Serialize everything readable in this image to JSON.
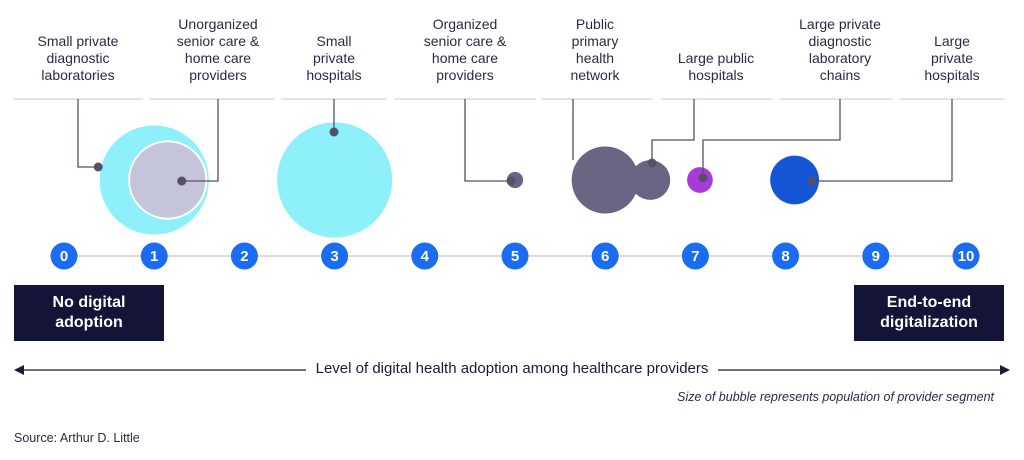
{
  "chart_data": {
    "type": "scatter",
    "title": "",
    "xlabel": "Level of digital health adoption among healthcare providers",
    "ylabel": "",
    "xlim": [
      0,
      10
    ],
    "ticks": [
      "0",
      "1",
      "2",
      "3",
      "4",
      "5",
      "6",
      "7",
      "8",
      "9",
      "10"
    ],
    "left_label": "No digital adoption",
    "right_label": "End-to-end digitalization",
    "note": "Size of bubble represents population of provider segment",
    "source": "Source: Arthur D. Little",
    "series": [
      {
        "name": "Small private diagnostic laboratories",
        "x": 1.0,
        "size": 9,
        "color": "#8ef0fb"
      },
      {
        "name": "Unorganized senior care & home care providers",
        "x": 1.15,
        "size": 4.5,
        "color": "#c4c5da"
      },
      {
        "name": "Small private hospitals",
        "x": 3.0,
        "size": 10,
        "color": "#8ef0fb"
      },
      {
        "name": "Organized senior care & home care providers",
        "x": 5.0,
        "size": 0.2,
        "color": "#6a6582"
      },
      {
        "name": "Public primary health network",
        "x": 6.0,
        "size": 3.4,
        "color": "#6a6582"
      },
      {
        "name": "Large public hospitals",
        "x": 6.5,
        "size": 1.2,
        "color": "#6a6582"
      },
      {
        "name": "Large private diagnostic laboratory chains",
        "x": 7.05,
        "size": 0.5,
        "color": "#a83ad8"
      },
      {
        "name": "Large private hospitals",
        "x": 8.1,
        "size": 1.8,
        "color": "#1556d6"
      }
    ]
  },
  "labels": [
    {
      "lines": [
        "Small private",
        "diagnostic",
        "laboratories"
      ]
    },
    {
      "lines": [
        "Unorganized",
        "senior care &",
        "home care",
        "providers"
      ]
    },
    {
      "lines": [
        "Small",
        "private",
        "hospitals"
      ]
    },
    {
      "lines": [
        "Organized",
        "senior care &",
        "home care",
        "providers"
      ]
    },
    {
      "lines": [
        "Public",
        "primary",
        "health",
        "network"
      ]
    },
    {
      "lines": [
        "Large public",
        "hospitals"
      ]
    },
    {
      "lines": [
        "Large private",
        "diagnostic",
        "laboratory",
        "chains"
      ]
    },
    {
      "lines": [
        "Large",
        "private",
        "hospitals"
      ]
    }
  ],
  "colors": {
    "tick": "#1a6cf0",
    "line": "#c8c8d0",
    "leader": "#55506a",
    "dark_box": "#141338"
  }
}
